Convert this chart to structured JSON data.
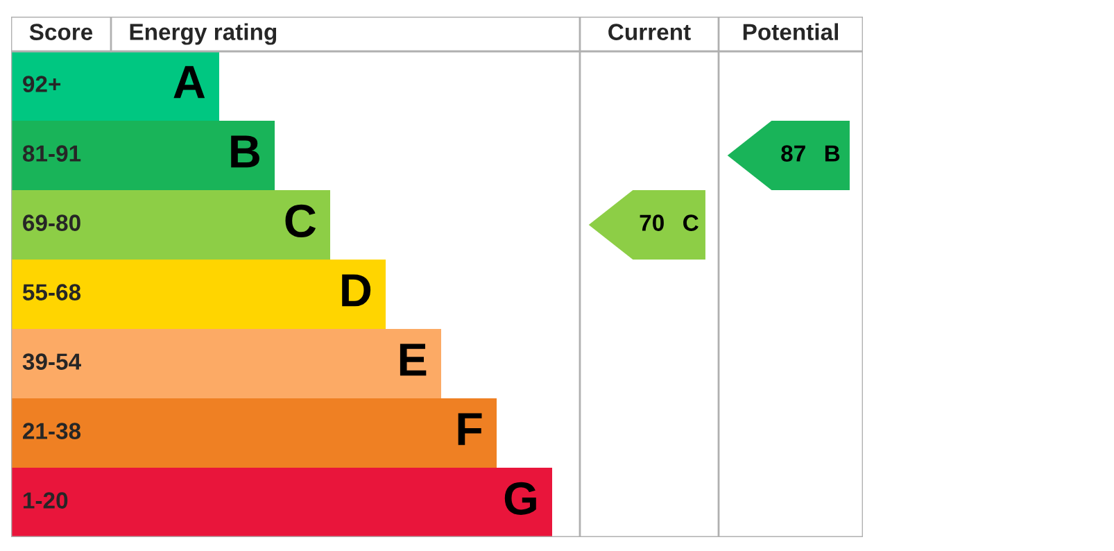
{
  "chart_data": {
    "type": "other",
    "categories": [
      "92+",
      "81-91",
      "69-80",
      "55-68",
      "39-54",
      "21-38",
      "1-20"
    ],
    "value_labels": [
      "A",
      "B",
      "C",
      "D",
      "E",
      "F",
      "G"
    ],
    "colors": [
      "#00c781",
      "#19b459",
      "#8dce46",
      "#ffd500",
      "#fcaa65",
      "#ef8023",
      "#e9153b"
    ],
    "series": [
      {
        "values": [
          null,
          null,
          70,
          null,
          null,
          null,
          null
        ]
      },
      {
        "values": [
          null,
          87,
          null,
          null,
          null,
          null,
          null
        ]
      }
    ],
    "data_labels": true,
    "annotations": [
      "Score",
      "Energy rating",
      "Current",
      "Potential"
    ]
  }
}
